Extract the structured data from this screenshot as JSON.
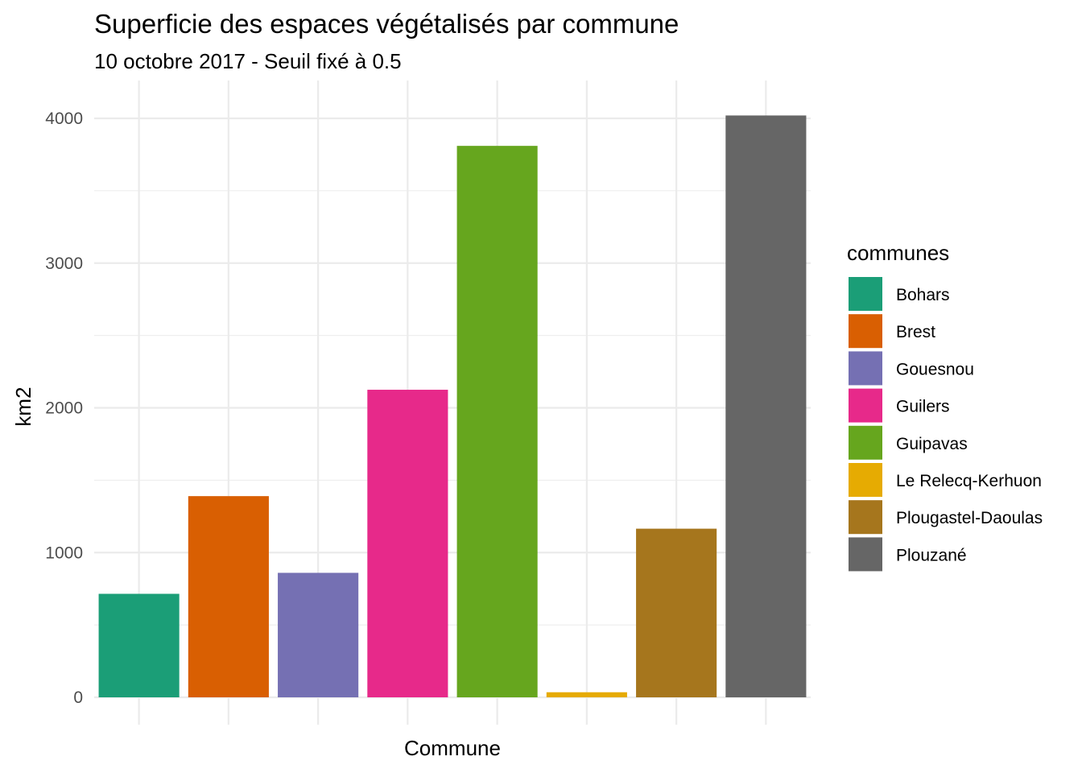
{
  "chart_data": {
    "type": "bar",
    "title": "Superficie des espaces végétalisés par commune",
    "subtitle": "10 octobre 2017 - Seuil fixé à 0.5",
    "xlabel": "Commune",
    "ylabel": "km2",
    "ylim": [
      0,
      4100
    ],
    "yticks": [
      0,
      1000,
      2000,
      3000,
      4000
    ],
    "grid": true,
    "legend": {
      "title": "communes",
      "placement": "right"
    },
    "categories": [
      "Bohars",
      "Brest",
      "Gouesnou",
      "Guilers",
      "Guipavas",
      "Le Relecq-Kerhuon",
      "Plougastel-Daoulas",
      "Plouzané"
    ],
    "values": [
      715,
      1390,
      860,
      2125,
      3810,
      35,
      1165,
      4020
    ],
    "colors": [
      "#1b9e77",
      "#d95f02",
      "#7570b3",
      "#e7298a",
      "#66a61e",
      "#e6ab02",
      "#a6761d",
      "#666666"
    ]
  }
}
